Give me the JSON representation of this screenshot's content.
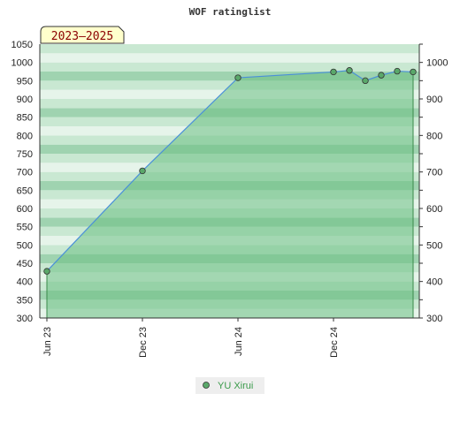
{
  "chart_data": {
    "type": "area",
    "title": "WOF ratinglist",
    "range_label": "2023–2025",
    "xlabel": "",
    "ylabel": "",
    "ylim": [
      300,
      1050
    ],
    "y_ticks_left": [
      300,
      350,
      400,
      450,
      500,
      550,
      600,
      650,
      700,
      750,
      800,
      850,
      900,
      950,
      1000,
      1050
    ],
    "y_ticks_right": [
      300,
      400,
      500,
      600,
      700,
      800,
      900,
      1000
    ],
    "x_ticks": [
      "Jun 23",
      "Dec 23",
      "Jun 24",
      "Dec 24"
    ],
    "series": [
      {
        "name": "YU Xirui",
        "x": [
          "2023-06",
          "2023-12",
          "2024-06",
          "2024-12",
          "2025-01",
          "2025-02",
          "2025-03",
          "2025-04",
          "2025-05"
        ],
        "values": [
          428,
          703,
          958,
          974,
          978,
          950,
          965,
          976,
          974
        ]
      }
    ],
    "legend_position": "bottom",
    "grid": true,
    "colors": {
      "fill": "#6cbf84",
      "line": "#4a90d9",
      "marker": "#5aa86a",
      "band_light": "#e6f4ea",
      "band_mid": "#c9e8d2",
      "band_dark": "#9fd3b0",
      "badge_bg": "#ffffcc"
    }
  }
}
